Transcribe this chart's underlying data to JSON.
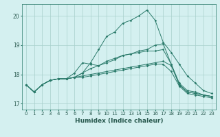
{
  "xlabel": "Humidex (Indice chaleur)",
  "bg_color": "#d4f0f0",
  "grid_color": "#a8d0cc",
  "line_color": "#2a7a6a",
  "xlim": [
    -0.5,
    23.5
  ],
  "ylim": [
    16.8,
    20.4
  ],
  "yticks": [
    17,
    18,
    19,
    20
  ],
  "xticks": [
    0,
    1,
    2,
    3,
    4,
    5,
    6,
    7,
    8,
    9,
    10,
    11,
    12,
    13,
    14,
    15,
    16,
    17,
    18,
    19,
    20,
    21,
    22,
    23
  ],
  "series": [
    [
      17.65,
      17.4,
      17.65,
      17.8,
      17.85,
      17.85,
      17.9,
      18.05,
      18.4,
      18.85,
      19.3,
      19.45,
      19.75,
      19.85,
      20.0,
      20.2,
      19.85,
      19.1,
      18.75,
      18.35,
      17.95,
      17.7,
      17.45,
      17.35
    ],
    [
      17.65,
      17.4,
      17.65,
      17.8,
      17.85,
      17.85,
      18.05,
      18.4,
      18.35,
      18.3,
      18.4,
      18.5,
      18.65,
      18.7,
      18.8,
      18.85,
      19.0,
      19.05,
      18.35,
      17.7,
      17.45,
      17.4,
      17.3,
      17.25
    ],
    [
      17.65,
      17.4,
      17.65,
      17.8,
      17.85,
      17.85,
      17.9,
      18.05,
      18.2,
      18.3,
      18.45,
      18.55,
      18.65,
      18.7,
      18.75,
      18.8,
      18.8,
      18.85,
      18.35,
      17.65,
      17.4,
      17.35,
      17.3,
      17.25
    ],
    [
      17.65,
      17.4,
      17.65,
      17.8,
      17.85,
      17.85,
      17.9,
      17.95,
      18.0,
      18.05,
      18.1,
      18.15,
      18.2,
      18.25,
      18.3,
      18.35,
      18.4,
      18.45,
      18.3,
      17.65,
      17.4,
      17.35,
      17.3,
      17.25
    ],
    [
      17.65,
      17.4,
      17.65,
      17.8,
      17.85,
      17.85,
      17.9,
      17.9,
      17.95,
      18.0,
      18.05,
      18.1,
      18.15,
      18.2,
      18.25,
      18.3,
      18.35,
      18.35,
      18.1,
      17.6,
      17.35,
      17.3,
      17.25,
      17.2
    ]
  ]
}
